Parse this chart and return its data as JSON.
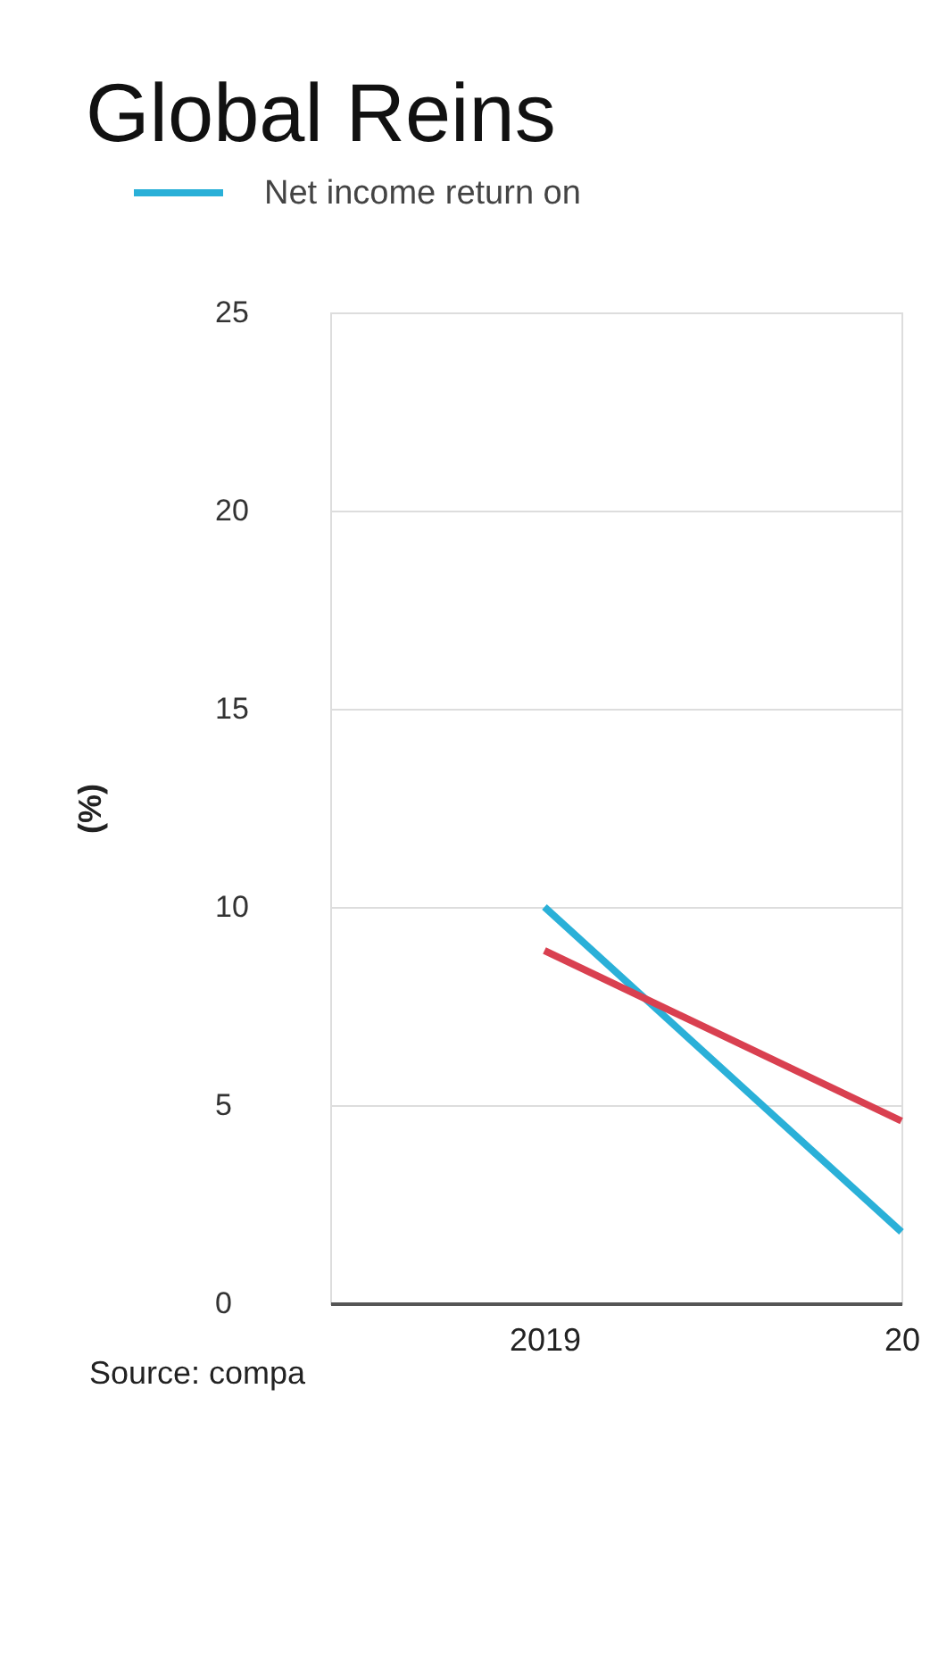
{
  "chart_data": {
    "type": "line",
    "title": "Global Reins",
    "ylabel": "(%)",
    "categories": [
      "2019",
      "20"
    ],
    "series": [
      {
        "name": "Net income return on",
        "color": "#2ab0d8",
        "values": [
          10,
          1.8
        ]
      },
      {
        "color": "#d94050",
        "values": [
          8.9,
          4.6
        ]
      }
    ],
    "ylim": [
      0,
      25
    ],
    "yticks": [
      0,
      5,
      10,
      15,
      20,
      25
    ],
    "grid": "y",
    "legend": "top left",
    "annotations": [
      "Source: compa"
    ]
  }
}
